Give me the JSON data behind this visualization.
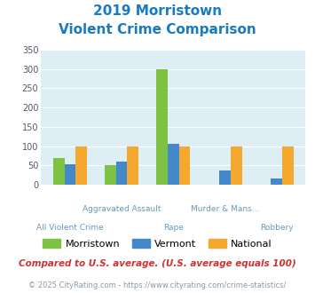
{
  "title_line1": "2019 Morristown",
  "title_line2": "Violent Crime Comparison",
  "title_color": "#1a7abf",
  "categories": [
    "All Violent Crime",
    "Aggravated Assault",
    "Rape",
    "Murder & Mans...",
    "Robbery"
  ],
  "cat_labels_row1": [
    "",
    "Aggravated Assault",
    "",
    "Murder & Mans...",
    ""
  ],
  "cat_labels_row2": [
    "All Violent Crime",
    "",
    "Rape",
    "",
    "Robbery"
  ],
  "morristown": [
    70,
    50,
    300,
    0,
    0
  ],
  "vermont": [
    53,
    60,
    105,
    36,
    15
  ],
  "national": [
    100,
    100,
    100,
    100,
    100
  ],
  "bar_colors": {
    "morristown": "#7dc242",
    "vermont": "#4488cc",
    "national": "#f5a830"
  },
  "ylim": [
    0,
    350
  ],
  "yticks": [
    0,
    50,
    100,
    150,
    200,
    250,
    300,
    350
  ],
  "bg_color": "#ddeef5",
  "legend_labels": [
    "Morristown",
    "Vermont",
    "National"
  ],
  "footnote1": "Compared to U.S. average. (U.S. average equals 100)",
  "footnote2": "© 2025 CityRating.com - https://www.cityrating.com/crime-statistics/",
  "footnote1_color": "#cc3333",
  "footnote2_color": "#8899aa",
  "title_fontsize": 11,
  "tick_label_color": "#6699bb"
}
